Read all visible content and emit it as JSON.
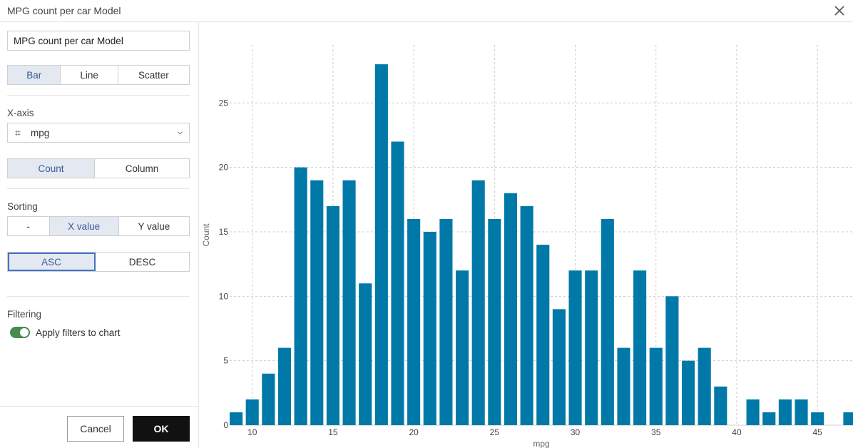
{
  "window": {
    "title": "MPG count per car Model"
  },
  "sidebar": {
    "chart_name_value": "MPG count per car Model",
    "chart_type": {
      "options": [
        "Bar",
        "Line",
        "Scatter"
      ],
      "selected": "Bar"
    },
    "x_axis": {
      "label": "X-axis",
      "column_icon": "#-number-icon",
      "value": "mpg"
    },
    "aggregation": {
      "options": [
        "Count",
        "Column"
      ],
      "selected": "Count"
    },
    "sorting": {
      "label": "Sorting",
      "by_options": [
        "-",
        "X value",
        "Y value"
      ],
      "by_selected": "X value",
      "order_options": [
        "ASC",
        "DESC"
      ],
      "order_selected": "ASC"
    },
    "filtering": {
      "label": "Filtering",
      "toggle_label": "Apply filters to chart",
      "toggle_on": true
    }
  },
  "footer": {
    "cancel_label": "Cancel",
    "ok_label": "OK"
  },
  "colors": {
    "bar": "#0079a8",
    "active_segment_bg": "#e3e8f1",
    "active_segment_text": "#3b5b94",
    "toggle_on": "#4a8a4f",
    "ok_button": "#111111"
  },
  "chart_data": {
    "type": "bar",
    "xlabel": "mpg",
    "ylabel": "Count",
    "x": [
      9,
      10,
      11,
      12,
      13,
      14,
      15,
      16,
      17,
      18,
      19,
      20,
      21,
      22,
      23,
      24,
      25,
      26,
      27,
      28,
      29,
      30,
      31,
      32,
      33,
      34,
      35,
      36,
      37,
      38,
      39,
      40,
      41,
      42,
      43,
      44,
      45,
      46,
      47
    ],
    "values": [
      1,
      2,
      4,
      6,
      20,
      19,
      17,
      19,
      11,
      28,
      22,
      16,
      15,
      16,
      12,
      19,
      16,
      18,
      17,
      14,
      9,
      12,
      12,
      16,
      6,
      12,
      6,
      10,
      5,
      6,
      3,
      0,
      2,
      1,
      2,
      2,
      1,
      0,
      1
    ],
    "x_ticks": [
      10,
      15,
      20,
      25,
      30,
      35,
      40,
      45
    ],
    "y_ticks": [
      0,
      5,
      10,
      15,
      20,
      25
    ],
    "xlim": [
      8.6,
      47.2
    ],
    "ylim": [
      0,
      29.5
    ],
    "grid": true
  }
}
